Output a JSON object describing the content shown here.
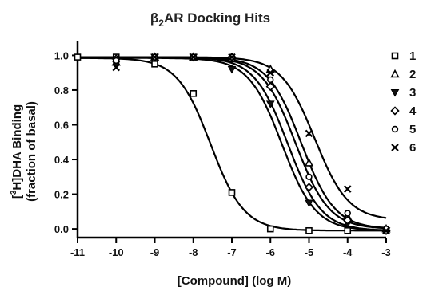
{
  "chart_data": {
    "type": "scatter",
    "title_prefix": "β",
    "title_sub": "2",
    "title_rest": "AR Docking Hits",
    "xlabel": "[Compound] (log M)",
    "ylabel_line1_pre": "[",
    "ylabel_line1_sup": "3",
    "ylabel_line1_post": "H]DHA Binding",
    "ylabel_line2": "(fraction of basal)",
    "xlim": [
      -11,
      -3
    ],
    "ylim": [
      -0.05,
      1.08
    ],
    "x_ticks": [
      -11,
      -10,
      -9,
      -8,
      -7,
      -6,
      -5,
      -4,
      -3
    ],
    "y_ticks": [
      0.0,
      0.2,
      0.4,
      0.6,
      0.8,
      1.0
    ],
    "x_tick_labels": [
      "-11",
      "-10",
      "-9",
      "-8",
      "-7",
      "-6",
      "-5",
      "-4",
      "-3"
    ],
    "y_tick_labels": [
      "0.0",
      "0.2",
      "0.4",
      "0.6",
      "0.8",
      "1.0"
    ],
    "legend_position": "right",
    "grid": false,
    "series": [
      {
        "name": "1",
        "marker": "square",
        "x": [
          -11,
          -10,
          -9,
          -8,
          -7,
          -6,
          -5,
          -4,
          -3
        ],
        "y": [
          0.99,
          0.99,
          0.95,
          0.78,
          0.21,
          0.0,
          -0.01,
          -0.01,
          -0.01
        ],
        "fit": {
          "top": 0.985,
          "bottom": -0.01,
          "logec50": -7.55
        }
      },
      {
        "name": "2",
        "marker": "triangle-up",
        "x": [
          -10,
          -9,
          -8,
          -7,
          -6,
          -5,
          -4,
          -3
        ],
        "y": [
          0.96,
          0.99,
          0.99,
          0.98,
          0.92,
          0.38,
          0.07,
          0.0
        ],
        "fit": {
          "top": 0.99,
          "bottom": 0.0,
          "logec50": -5.2
        }
      },
      {
        "name": "3",
        "marker": "triangle-down",
        "x": [
          -10,
          -9,
          -8,
          -7,
          -6,
          -5,
          -4,
          -3
        ],
        "y": [
          0.95,
          0.99,
          0.99,
          0.92,
          0.72,
          0.15,
          0.03,
          -0.01
        ],
        "fit": {
          "top": 0.985,
          "bottom": -0.01,
          "logec50": -5.7
        }
      },
      {
        "name": "4",
        "marker": "diamond",
        "x": [
          -10,
          -9,
          -8,
          -7,
          -6,
          -5,
          -4,
          -3
        ],
        "y": [
          0.98,
          0.99,
          0.99,
          0.99,
          0.82,
          0.24,
          0.05,
          -0.01
        ],
        "fit": {
          "top": 0.99,
          "bottom": -0.01,
          "logec50": -5.55
        }
      },
      {
        "name": "5",
        "marker": "circle",
        "x": [
          -10,
          -9,
          -8,
          -7,
          -6,
          -5,
          -4,
          -3
        ],
        "y": [
          0.97,
          0.99,
          0.99,
          0.99,
          0.86,
          0.3,
          0.09,
          0.0
        ],
        "fit": {
          "top": 0.99,
          "bottom": 0.0,
          "logec50": -5.35
        }
      },
      {
        "name": "6",
        "marker": "x",
        "x": [
          -10,
          -9,
          -8,
          -7,
          -6,
          -5,
          -4,
          -3
        ],
        "y": [
          0.93,
          0.99,
          0.99,
          0.99,
          0.9,
          0.55,
          0.23,
          -0.01
        ],
        "fit": {
          "top": 0.99,
          "bottom": 0.05,
          "logec50": -4.85
        }
      }
    ]
  }
}
